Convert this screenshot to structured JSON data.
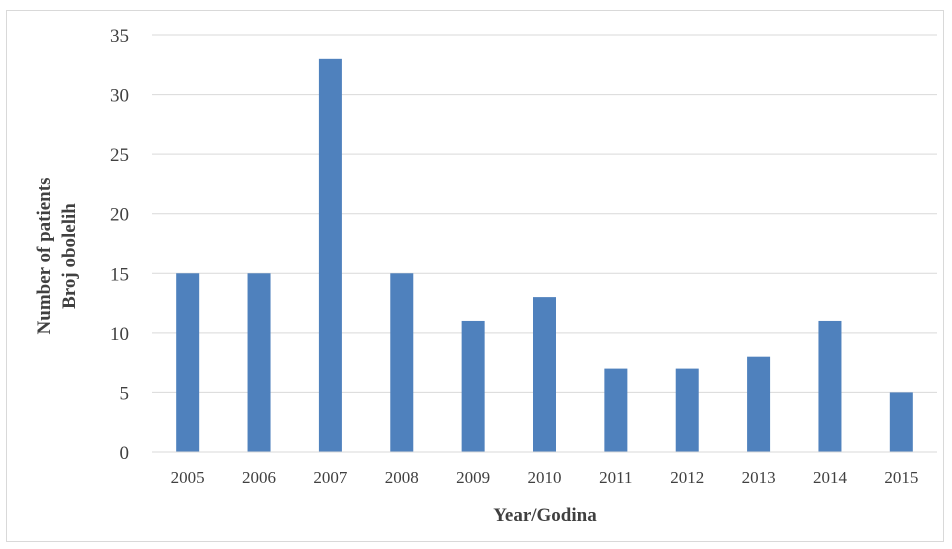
{
  "chart_data": {
    "type": "bar",
    "title": "",
    "xlabel": "Year/Godina",
    "ylabel_lines": [
      "Number of patients",
      "Broj obolelih"
    ],
    "categories": [
      "2005",
      "2006",
      "2007",
      "2008",
      "2009",
      "2010",
      "2011",
      "2012",
      "2013",
      "2014",
      "2015"
    ],
    "series": [
      {
        "values": [
          15,
          15,
          33,
          15,
          11,
          13,
          7,
          7,
          8,
          11,
          5
        ],
        "color": "#4f81bd"
      }
    ],
    "ylim": [
      0,
      35
    ],
    "yticks": [
      "0",
      "5",
      "10",
      "15",
      "20",
      "25",
      "30",
      "35"
    ],
    "grid": true,
    "legend": "none",
    "colors": {
      "bar": "#4f81bd",
      "grid": "#d9d9d9",
      "text": "#404040",
      "axis_title": "#404040"
    }
  }
}
